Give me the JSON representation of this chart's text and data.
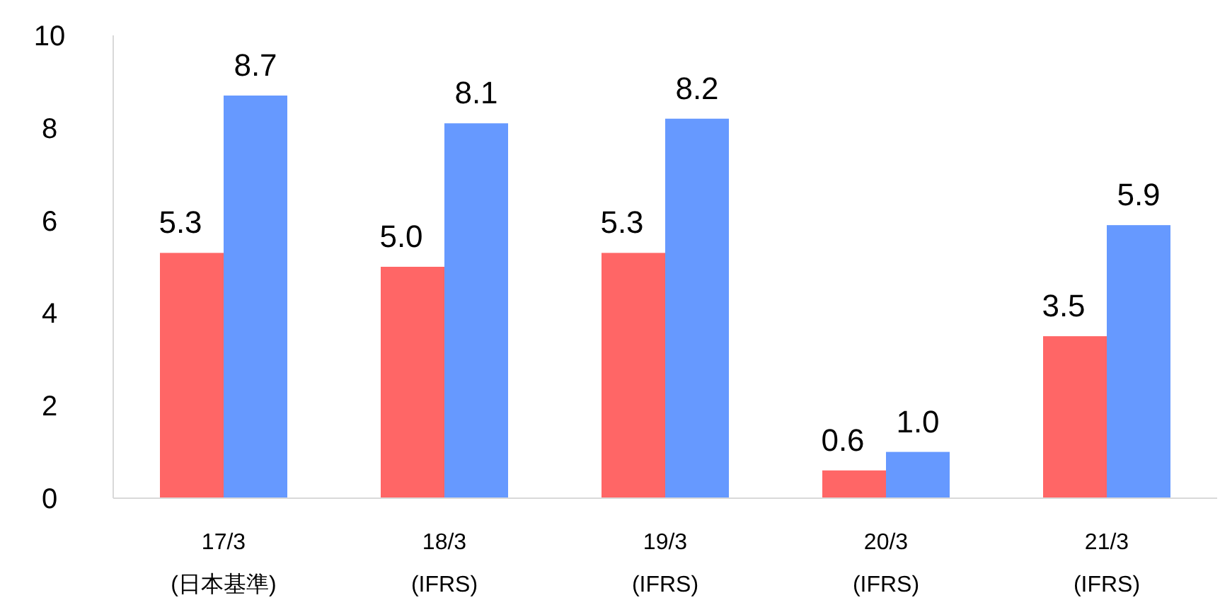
{
  "chart_data": {
    "type": "bar",
    "categories": [
      "17/3\n(日本基準)",
      "18/3\n(IFRS)",
      "19/3\n(IFRS)",
      "20/3\n(IFRS)",
      "21/3\n(IFRS)"
    ],
    "series": [
      {
        "color": "#ff6666",
        "values": [
          5.3,
          5.0,
          5.3,
          0.6,
          3.5
        ],
        "value_labels": [
          "5.3",
          "5.0",
          "5.3",
          "0.6",
          "3.5"
        ]
      },
      {
        "color": "#6699ff",
        "values": [
          8.7,
          8.1,
          8.2,
          1.0,
          5.9
        ],
        "value_labels": [
          "8.7",
          "8.1",
          "8.2",
          "1.0",
          "5.9"
        ]
      }
    ],
    "ylim": [
      0,
      10
    ],
    "yticks": [
      0,
      2,
      4,
      6,
      8,
      10
    ],
    "grid": false
  }
}
